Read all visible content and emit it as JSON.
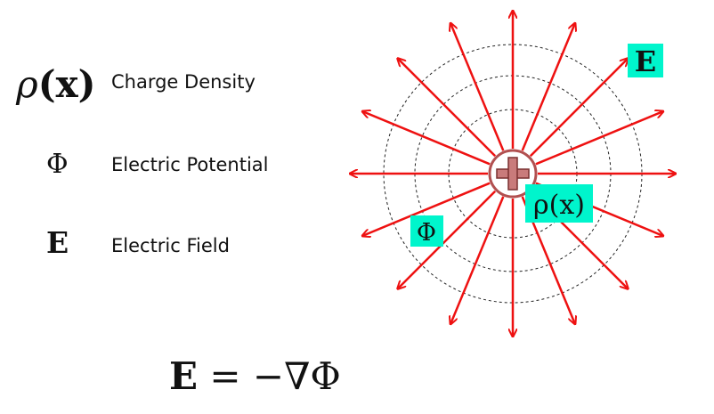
{
  "legend": {
    "rho_symbol": "ρ",
    "rho_arg": "(x)",
    "rho_label": "Charge Density",
    "phi_symbol": "Φ",
    "phi_label": "Electric Potential",
    "e_symbol": "E",
    "e_label": "Electric Field"
  },
  "equation": {
    "lhs": "E",
    "rhs": " = −∇Φ"
  },
  "diagram": {
    "charge_sign": "+",
    "tag_e": "E",
    "tag_phi": "Φ",
    "tag_rho": "ρ(x)",
    "field_line_count": 16,
    "equipotential_count": 3,
    "colors": {
      "arrow": "#ee1111",
      "charge_fill": "#c97b7b",
      "charge_ring": "#b15050",
      "tag_bg": "#00f5cc",
      "equipotential": "#222222"
    }
  }
}
